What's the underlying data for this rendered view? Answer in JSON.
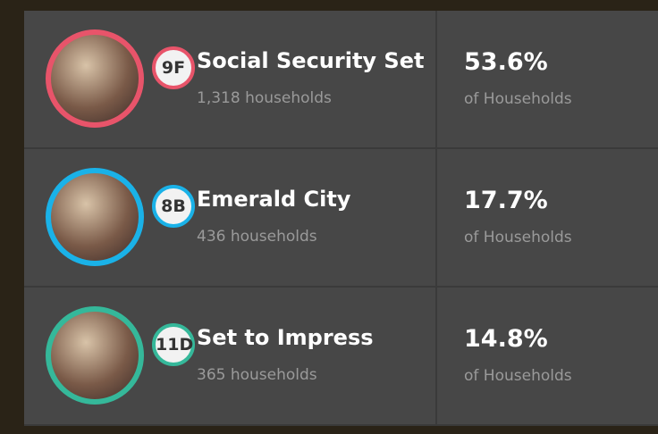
{
  "segments": [
    {
      "code": "9F",
      "name": "Social Security Set",
      "households": "1,318 households",
      "percent": "53.6%",
      "percent_label": "of Households",
      "color": "#e8546a"
    },
    {
      "code": "8B",
      "name": "Emerald City",
      "households": "436 households",
      "percent": "17.7%",
      "percent_label": "of Households",
      "color": "#1ab2e8"
    },
    {
      "code": "11D",
      "name": "Set to Impress",
      "households": "365 households",
      "percent": "14.8%",
      "percent_label": "of Households",
      "color": "#35b89a"
    }
  ]
}
